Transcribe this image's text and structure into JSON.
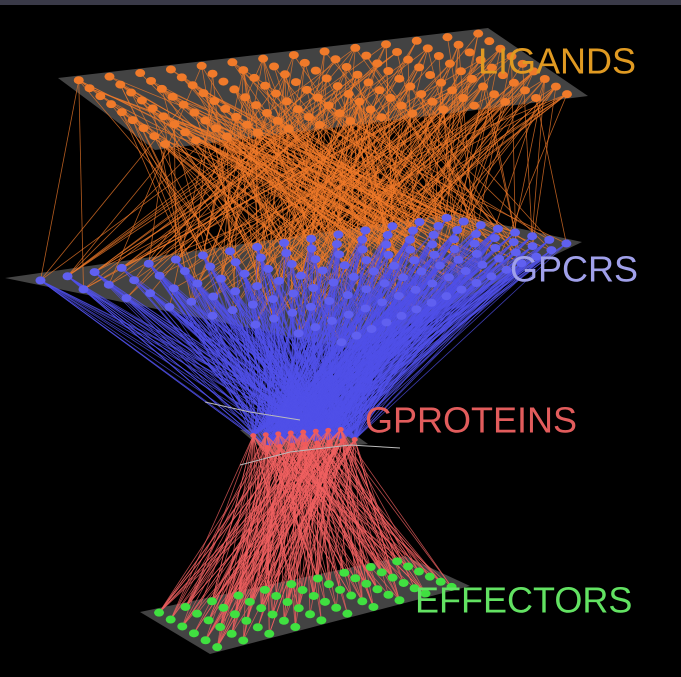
{
  "layers": [
    {
      "label": "LIGANDS"
    },
    {
      "label": "GPCRS"
    },
    {
      "label": "GPROTEINS"
    },
    {
      "label": "EFFECTORS"
    }
  ]
}
